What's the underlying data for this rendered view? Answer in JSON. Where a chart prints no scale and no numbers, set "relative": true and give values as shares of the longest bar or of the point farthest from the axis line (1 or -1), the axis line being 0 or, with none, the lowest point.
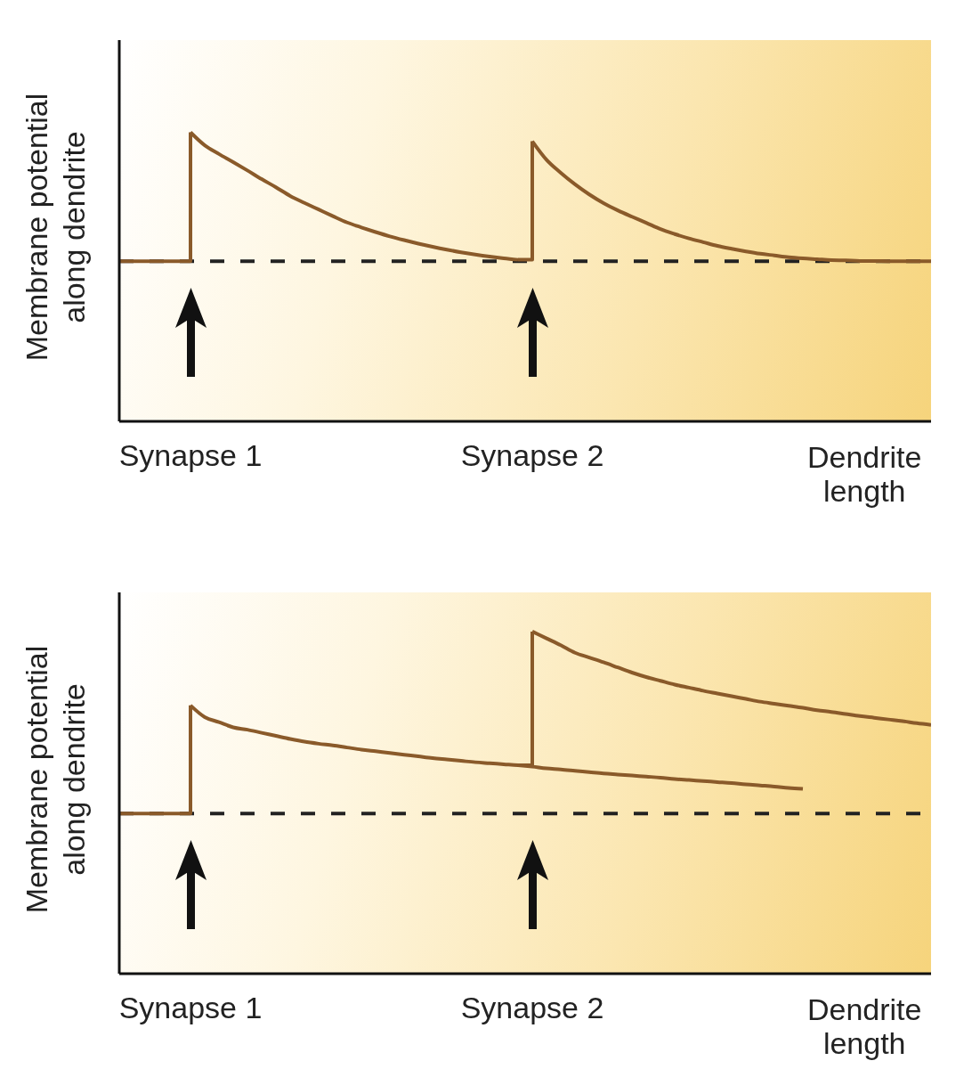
{
  "chart_data": [
    {
      "type": "line",
      "xlabel": "Dendrite length",
      "ylabel": "Membrane potential along dendrite",
      "relative": true,
      "tick_labels": "x",
      "categories": [
        null,
        null,
        null,
        null,
        null,
        "Synapse 1",
        null,
        null,
        null,
        null,
        null,
        null,
        null,
        null,
        null,
        null,
        null,
        null,
        null,
        null,
        null,
        null,
        null,
        null,
        null,
        null,
        null,
        null,
        null,
        "Synapse 2",
        null,
        null,
        null,
        null,
        null,
        null,
        null,
        null,
        null,
        null,
        null,
        null,
        null,
        null,
        null,
        null,
        null,
        null,
        null,
        null,
        null,
        null,
        null,
        null,
        null,
        null,
        null,
        null
      ],
      "ref_lines": [
        {
          "axis": "y",
          "value": 0.554,
          "line_style": "dashed",
          "color": "#222222"
        }
      ],
      "series": [
        {
          "type": "step",
          "color": "#8a5a2a",
          "values": [
            0.554,
            0.554,
            0.554,
            0.554,
            0.554,
            1,
            null,
            null,
            null,
            null,
            null,
            null,
            null,
            null,
            null,
            null,
            null,
            null,
            null,
            null,
            null,
            null,
            null,
            null,
            null,
            null,
            null,
            null,
            0.559,
            0.969,
            null,
            null,
            null,
            null,
            null,
            null,
            null,
            null,
            null,
            null,
            null,
            null,
            null,
            null,
            null,
            null,
            null,
            null,
            null,
            null,
            null,
            null,
            null,
            null,
            null,
            null,
            null,
            null
          ]
        },
        {
          "color": "#8a5a2a",
          "values": [
            null,
            null,
            null,
            null,
            null,
            1,
            0.955,
            0.925,
            0.897,
            0.868,
            0.838,
            0.81,
            0.78,
            0.756,
            0.733,
            0.71,
            0.688,
            0.671,
            0.655,
            0.64,
            0.627,
            0.615,
            0.604,
            0.594,
            0.585,
            0.577,
            0.57,
            0.564,
            0.559,
            null,
            null,
            null,
            null,
            null,
            null,
            null,
            null,
            null,
            null,
            null,
            null,
            null,
            null,
            null,
            null,
            null,
            null,
            null,
            null,
            null,
            null,
            null,
            null,
            null,
            null,
            null,
            null,
            null
          ]
        },
        {
          "color": "#8a5a2a",
          "values": [
            null,
            null,
            null,
            null,
            null,
            null,
            null,
            null,
            null,
            null,
            null,
            null,
            null,
            null,
            null,
            null,
            null,
            null,
            null,
            null,
            null,
            null,
            null,
            null,
            null,
            null,
            null,
            null,
            null,
            0.969,
            0.905,
            0.86,
            0.82,
            0.785,
            0.755,
            0.73,
            0.708,
            0.687,
            0.665,
            0.648,
            0.633,
            0.62,
            0.607,
            0.597,
            0.588,
            0.58,
            0.574,
            0.568,
            0.564,
            0.561,
            0.558,
            0.557,
            0.555,
            0.555,
            0.554,
            0.554,
            0.554,
            0.554
          ]
        }
      ]
    },
    {
      "type": "line",
      "xlabel": "Dendrite length",
      "ylabel": "Membrane potential along dendrite",
      "relative": true,
      "tick_labels": "x",
      "categories": [
        null,
        null,
        null,
        null,
        null,
        "Synapse 1",
        null,
        null,
        null,
        null,
        null,
        null,
        null,
        null,
        null,
        null,
        null,
        null,
        null,
        null,
        null,
        null,
        null,
        null,
        null,
        null,
        null,
        null,
        null,
        "Synapse 2",
        null,
        null,
        null,
        null,
        null,
        null,
        null,
        null,
        null,
        null,
        null,
        null,
        null,
        null,
        null,
        null,
        null,
        null,
        null,
        null,
        null,
        null,
        null,
        null,
        null,
        null,
        null,
        null
      ],
      "ref_lines": [
        {
          "axis": "y",
          "value": 0.468,
          "line_style": "dashed",
          "color": "#222222"
        }
      ],
      "series": [
        {
          "type": "step",
          "color": "#8a5a2a",
          "values": [
            0.468,
            0.468,
            0.468,
            0.468,
            0.468,
            0.784,
            null,
            null,
            null,
            null,
            null,
            null,
            null,
            null,
            null,
            null,
            null,
            null,
            null,
            null,
            null,
            null,
            null,
            null,
            null,
            null,
            null,
            null,
            0.609,
            1,
            null,
            null,
            null,
            null,
            null,
            null,
            null,
            null,
            null,
            null,
            null,
            null,
            null,
            null,
            null,
            null,
            null,
            null,
            null,
            null,
            null,
            null,
            null,
            null,
            null,
            null,
            null,
            null
          ]
        },
        {
          "color": "#8a5a2a",
          "values": [
            null,
            null,
            null,
            null,
            null,
            0.784,
            0.75,
            0.735,
            0.72,
            0.713,
            0.704,
            0.695,
            0.686,
            0.678,
            0.672,
            0.667,
            0.661,
            0.655,
            0.65,
            0.645,
            0.64,
            0.635,
            0.63,
            0.626,
            0.622,
            0.618,
            0.615,
            0.612,
            0.609,
            0.605,
            0.6,
            0.597,
            0.593,
            0.589,
            0.585,
            0.582,
            0.579,
            0.576,
            0.573,
            0.569,
            0.566,
            0.563,
            0.56,
            0.557,
            0.553,
            0.55,
            0.547,
            0.543,
            0.54,
            null,
            null,
            null,
            null,
            null,
            null,
            null,
            null,
            null
          ]
        },
        {
          "color": "#8a5a2a",
          "values": [
            null,
            null,
            null,
            null,
            null,
            null,
            null,
            null,
            null,
            null,
            null,
            null,
            null,
            null,
            null,
            null,
            null,
            null,
            null,
            null,
            null,
            null,
            null,
            null,
            null,
            null,
            null,
            null,
            null,
            1,
            0.98,
            0.96,
            0.938,
            0.924,
            0.91,
            0.895,
            0.88,
            0.867,
            0.856,
            0.845,
            0.836,
            0.827,
            0.819,
            0.811,
            0.803,
            0.795,
            0.789,
            0.783,
            0.777,
            0.77,
            0.765,
            0.759,
            0.753,
            0.748,
            0.743,
            0.738,
            0.732,
            0.727
          ]
        }
      ]
    }
  ]
}
